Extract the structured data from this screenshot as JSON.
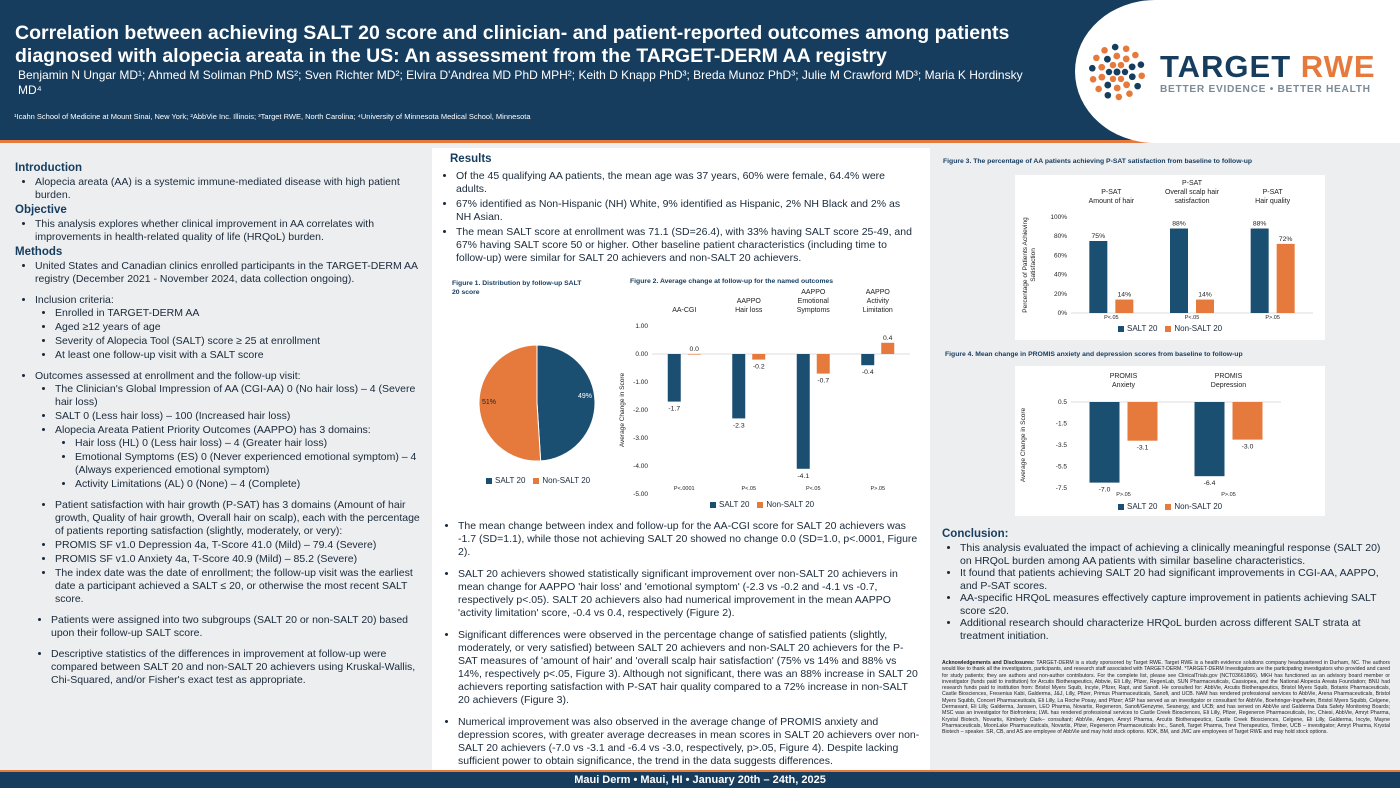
{
  "header": {
    "title": "Correlation between achieving SALT 20 score and clinician- and patient-reported outcomes among patients diagnosed with alopecia areata in the US: An assessment from the TARGET-DERM AA registry",
    "authors": "Benjamin N Ungar MD¹; Ahmed M Soliman PhD MS²; Sven Richter MD²; Elvira D'Andrea MD PhD MPH²; Keith D Knapp PhD³; Breda Munoz PhD³; Julie M Crawford MD³; Maria K Hordinsky MD⁴",
    "affiliations": "¹Icahn School of Medicine at Mount Sinai, New York; ²AbbVie Inc. Illinois; ³Target RWE, North Carolina; ⁴University of Minnesota Medical School, Minnesota",
    "logo_word_1": "TARGET",
    "logo_word_2": "RWE",
    "logo_tagline": "BETTER EVIDENCE • BETTER HEALTH"
  },
  "left": {
    "intro_h": "Introduction",
    "intro_1": "Alopecia areata (AA) is a systemic immune-mediated disease with high patient burden.",
    "obj_h": "Objective",
    "obj_1": "This analysis explores whether clinical improvement in AA correlates with improvements in health-related quality of life (HRQoL) burden.",
    "meth_h": "Methods",
    "m1": "United States and Canadian clinics enrolled participants in the TARGET-DERM AA registry (December 2021 - November 2024, data collection ongoing).",
    "m2": "Inclusion criteria:",
    "m2a": "Enrolled in TARGET-DERM AA",
    "m2b": "Aged ≥12 years of age",
    "m2c": "Severity of Alopecia Tool (SALT) score ≥ 25 at enrollment",
    "m2d": "At least one follow-up visit with a SALT score",
    "m3": "Outcomes assessed at enrollment and the follow-up visit:",
    "m3a": "The Clinician's Global Impression of AA (CGI-AA) 0 (No hair loss) – 4 (Severe hair loss)",
    "m3b": "SALT 0 (Less hair loss) – 100 (Increased hair loss)",
    "m3c": "Alopecia Areata Patient Priority Outcomes (AAPPO) has 3 domains:",
    "m3c1": "Hair loss (HL) 0 (Less hair loss) – 4 (Greater hair loss)",
    "m3c2": "Emotional Symptoms (ES) 0 (Never experienced emotional symptom) – 4 (Always experienced emotional symptom)",
    "m3c3": "Activity Limitations (AL) 0 (None) – 4 (Complete)",
    "m4": "Patient satisfaction with hair growth (P-SAT) has 3 domains (Amount of hair growth, Quality of hair growth, Overall hair on scalp), each with the percentage of patients reporting satisfaction (slightly, moderately, or very):",
    "m5": "PROMIS SF v1.0 Depression 4a, T-Score 41.0 (Mild) – 79.4 (Severe)",
    "m6": "PROMIS SF v1.0 Anxiety 4a, T-Score 40.9 (Mild) – 85.2 (Severe)",
    "m7": "The index date was the date of enrollment; the follow-up visit was the earliest date a participant achieved a SALT ≤ 20, or otherwise the most recent SALT score.",
    "m8": "Patients were assigned into two subgroups (SALT 20 or non-SALT 20) based upon their follow-up SALT score.",
    "m9": "Descriptive statistics of the differences in improvement at follow-up were compared between SALT 20 and non-SALT 20 achievers using Kruskal-Wallis, Chi-Squared, and/or Fisher's exact test as appropriate."
  },
  "results": {
    "h": "Results",
    "r1": "Of the 45 qualifying AA patients, the mean age was 37 years, 60% were female, 64.4% were adults.",
    "r2": "67% identified as Non-Hispanic (NH) White, 9% identified as Hispanic, 2% NH Black and 2% as NH Asian.",
    "r3": "The mean SALT score at enrollment was 71.1 (SD=26.4), with 33% having SALT score 25-49, and 67% having SALT score 50 or higher. Other baseline patient characteristics (including time to follow-up) were similar for SALT 20 achievers and non-SALT 20 achievers.",
    "r4": "The mean change between index and follow-up for the AA-CGI score for SALT 20 achievers was -1.7 (SD=1.1), while those not achieving SALT 20 showed no change 0.0 (SD=1.0, p<.0001, Figure 2).",
    "r5": "SALT 20 achievers showed statistically significant improvement over non-SALT 20 achievers in mean change for AAPPO 'hair loss' and 'emotional symptom' (-2.3 vs -0.2 and -4.1 vs -0.7, respectively p<.05). SALT 20 achievers also had numerical improvement in the mean AAPPO 'activity limitation' score, -0.4 vs 0.4, respectively (Figure 2).",
    "r6": "Significant differences were observed in the percentage change of satisfied patients (slightly, moderately, or very satisfied) between SALT 20 achievers and non-SALT 20 achievers for the P-SAT measures of 'amount of hair' and 'overall scalp hair satisfaction' (75% vs 14% and 88% vs 14%, respectively p<.05, Figure 3). Although not significant, there was an 88% increase in SALT 20 achievers reporting satisfaction with P-SAT hair quality compared to a 72% increase in non-SALT 20 achievers (Figure 3).",
    "r7": "Numerical improvement was also observed in the average change of PROMIS anxiety and depression scores, with greater average decreases in mean scores in SALT 20 achievers over non-SALT 20 achievers (-7.0 vs -3.1 and -6.4 vs -3.0, respectively, p>.05, Figure 4). Despite lacking sufficient power to obtain significance, the trend in the data suggests differences."
  },
  "fig1": {
    "caption": "Figure 1. Distribution by follow-up SALT 20 score",
    "legend_a": "SALT 20",
    "legend_b": "Non-SALT 20",
    "label_a": "49%",
    "label_b": "51%"
  },
  "fig2": {
    "caption": "Figure 2. Average change at follow-up for the named outcomes",
    "ylabel": "Average Change in Score",
    "legend_a": "SALT 20",
    "legend_b": "Non-SALT 20"
  },
  "fig3": {
    "caption": "Figure 3. The percentage of AA patients achieving P-SAT satisfaction from baseline to follow-up",
    "ylabel": "Percentage of Patients Achieving Satisfaction",
    "legend_a": "SALT 20",
    "legend_b": "Non-SALT 20"
  },
  "fig4": {
    "caption": "Figure 4. Mean change in PROMIS anxiety and depression scores from baseline to follow-up",
    "ylabel": "Average Change in Score",
    "legend_a": "SALT 20",
    "legend_b": "Non-SALT 20"
  },
  "chart_data": [
    {
      "type": "pie",
      "title": "Figure 1. Distribution by follow-up SALT 20 score",
      "labels": [
        "SALT 20",
        "Non-SALT 20"
      ],
      "values": [
        49,
        51
      ],
      "colors": [
        "#1b4f72",
        "#e57a3c"
      ],
      "legend": "bottom"
    },
    {
      "type": "bar",
      "title": "Figure 2. Average change at follow-up for the named outcomes",
      "categories": [
        "AA-CGI",
        "AAPPO Hair loss",
        "AAPPO Emotional Symptoms",
        "AAPPO Activity Limitation"
      ],
      "category_lines": [
        [
          "AA-CGI"
        ],
        [
          "AAPPO",
          "Hair loss"
        ],
        [
          "AAPPO",
          "Emotional",
          "Symptoms"
        ],
        [
          "AAPPO",
          "Activity",
          "Limitation"
        ]
      ],
      "series": [
        {
          "name": "SALT 20",
          "values": [
            -1.7,
            -2.3,
            -4.1,
            -0.4
          ],
          "labels": [
            "-1.7",
            "-2.3",
            "-4.1",
            "-0.4"
          ]
        },
        {
          "name": "Non-SALT 20",
          "values": [
            0.0,
            -0.2,
            -0.7,
            0.4
          ],
          "labels": [
            "0.0",
            "-0.2",
            "-0.7",
            "0.4"
          ]
        }
      ],
      "pvalues": [
        "P<.0001",
        "P<.05",
        "P<.05",
        "P>.05"
      ],
      "ylabel": "Average Change in Score",
      "ylim": [
        -5.0,
        1.0
      ],
      "yticks": [
        "1.00",
        "0.00",
        "-1.00",
        "-2.00",
        "-3.00",
        "-4.00",
        "-5.00"
      ],
      "legend": "bottom"
    },
    {
      "type": "bar",
      "title": "Figure 3. The percentage of AA patients achieving P-SAT satisfaction from baseline to follow-up",
      "categories": [
        "P-SAT Amount of hair",
        "P-SAT Overall scalp hair satisfaction",
        "P-SAT Hair quality"
      ],
      "category_lines": [
        [
          "P-SAT",
          "Amount of hair"
        ],
        [
          "P-SAT",
          "Overall scalp hair",
          "satisfaction"
        ],
        [
          "P-SAT",
          "Hair quality"
        ]
      ],
      "series": [
        {
          "name": "SALT 20",
          "values": [
            75,
            88,
            88
          ],
          "labels": [
            "75%",
            "88%",
            "88%"
          ]
        },
        {
          "name": "Non-SALT 20",
          "values": [
            14,
            14,
            72
          ],
          "labels": [
            "14%",
            "14%",
            "72%"
          ]
        }
      ],
      "pvalues": [
        "P<.05",
        "P<.05",
        "P>.05"
      ],
      "ylabel": "Percentage of Patients Achieving Satisfaction",
      "ylim": [
        0,
        100
      ],
      "yticks": [
        "100%",
        "80%",
        "60%",
        "40%",
        "20%",
        "0%"
      ],
      "legend": "bottom"
    },
    {
      "type": "bar",
      "title": "Figure 4. Mean change in PROMIS anxiety and depression scores from baseline to follow-up",
      "categories": [
        "PROMIS Anxiety",
        "PROMIS Depression"
      ],
      "category_lines": [
        [
          "PROMIS",
          "Anxiety"
        ],
        [
          "PROMIS",
          "Depression"
        ]
      ],
      "series": [
        {
          "name": "SALT 20",
          "values": [
            -7.0,
            -6.4
          ],
          "labels": [
            "-7.0",
            "-6.4"
          ]
        },
        {
          "name": "Non-SALT 20",
          "values": [
            -3.1,
            -3.0
          ],
          "labels": [
            "-3.1",
            "-3.0"
          ]
        }
      ],
      "pvalues": [
        "P>.05",
        "P>.05"
      ],
      "ylabel": "Average Change in Score",
      "ylim": [
        -7.5,
        0.5
      ],
      "yticks": [
        "0.5",
        "-1.5",
        "-3.5",
        "-5.5",
        "-7.5"
      ],
      "legend": "bottom"
    }
  ],
  "conclusion": {
    "h": "Conclusion:",
    "c1": "This analysis evaluated the impact of achieving a clinically meaningful response (SALT 20) on HRQoL burden among AA patients with similar baseline characteristics.",
    "c2": "It found that patients achieving SALT 20 had significant improvements in CGI-AA, AAPPO, and P-SAT scores.",
    "c3": "AA-specific HRQoL measures effectively capture improvement in patients achieving SALT score ≤20.",
    "c4": "Additional research should characterize HRQoL burden across different SALT strata at treatment initiation."
  },
  "ack": {
    "label": "Acknowledgements and Disclosures:",
    "text": "TARGET-DERM is a study sponsored by Target RWE. Target RWE is a health evidence solutions company headquartered in Durham, NC. The authors would like to thank all the investigators, participants, and research staff associated with TARGET-DERM. *TARGET-DERM Investigators are the participating investigators who provided and cared for study patients; they are authors and non-author contributors. For the complete list, please see ClinicalTrials.gov (NCT03661866). MKH has functioned as an advisory board member or investigator (funds paid to institution) for Arcutis Biotherapeutics, Abbvie, Eli Lilly, Pfizer, RegenLab, SUN Pharmaceuticals, Cassiopea, and the National Alopecia Areata Foundation; BNU had research funds paid to institution from: Bristol Myers Squib, Incyte, Pfizer, Rapt, and Sanofi. He consulted for: AbbVie, Arcutis Biotherapeutics, Bristol Myers Squib, Botanix Pharmaceuticals, Castle Biosciences, Fresenius Kabi, Galderma, J&J, Lilly, Pfizer, Primus Pharmaceuticals, Sanofi, and UCB. NAM has rendered professional services to AbbVie, Arena Pharmaceuticals, Bristol Myers Squibb, Concert Pharmaceuticals, Eli Lilly, La Roche Posay, and Pfizer; ASP has served as an investigator or consultant for AbbVie, Boehringer-Ingelheim, Bristol Myers Squibb, Celgene, Dermavant, Eli Lilly, Galderma, Janssen, LEO Pharma, Novartis, Regeneron, Sanofi/Genzyme, Seanergy, and UCB; and has served on AbbVie and Galderma Data Safety Monitoring Boards; MSC was an investigator for Biofrontera; LWL has rendered professional services to Castle Creek Biosciences, Eli Lilly, Pfizer, Regeneron Pharmaceuticals, Inc, Chiesi, AbbVie, Amryt Pharma, Krystal Biotech, Novartis, Kimberly Clark– consultant; AbbVie, Amgen, Amryt Pharma, Arcutis Biotherapeutics, Castle Creek Biosciences, Celgene, Eli Lilly, Galderma, Incyte, Mayne Pharmaceuticals, MoonLake Pharmaceuticals, Novartis, Pfizer, Regeneron Pharmaceuticals Inc., Sanofi, Target Pharma, Trevi Therapeutics, Timber, UCB – investigator; Amryt Pharma, Krystal Biotech – speaker. SR, CB, and AS are employee of AbbVie and may hold stock options. KDK, BM, and JMC are employees of Target RWE and may hold stock options."
  },
  "footer": {
    "text": "Maui Derm  •  Maui, HI  •  January 20th – 24th, 2025"
  },
  "colors": {
    "navy": "#163c5e",
    "series_a": "#1b4f72",
    "series_b": "#e57a3c"
  }
}
